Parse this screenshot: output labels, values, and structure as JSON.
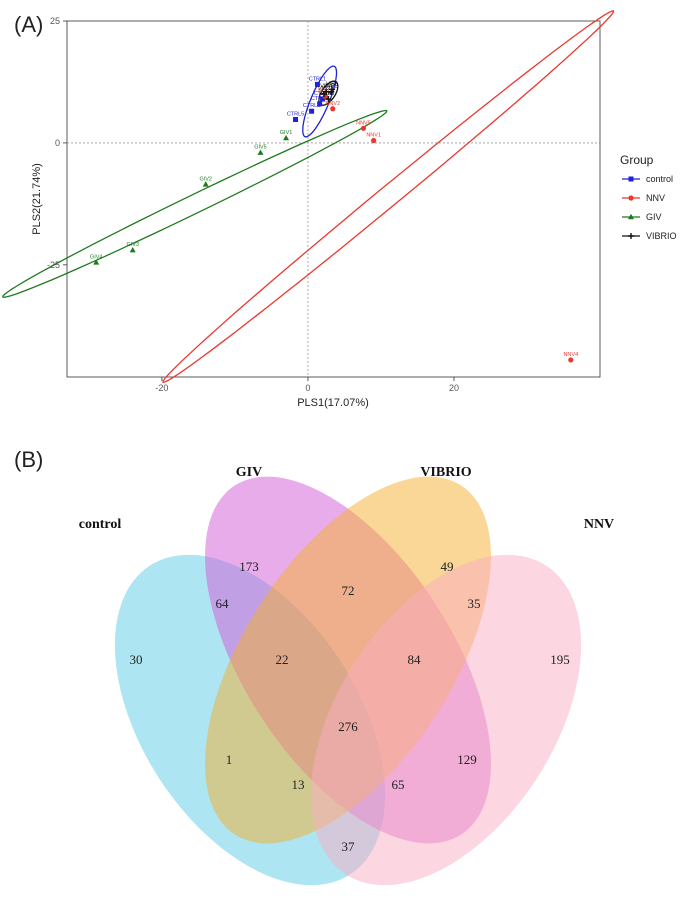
{
  "panel_a_label": "(A)",
  "panel_b_label": "(B)",
  "chart_data": [
    {
      "type": "scatter",
      "xlabel": "PLS1(17.07%)",
      "ylabel": "PLS2(21.74%)",
      "xlim": [
        -33,
        40
      ],
      "ylim": [
        -48,
        25
      ],
      "xticks": [
        -20,
        0,
        20
      ],
      "yticks": [
        -25,
        0,
        25
      ],
      "grid": false,
      "legend_title": "Group",
      "legend_position": "right",
      "series": [
        {
          "name": "control",
          "color": "#1f22d6",
          "marker": "square",
          "points": [
            {
              "label": "CTRL1",
              "x": 1.3,
              "y": 12.0
            },
            {
              "label": "CTRL2",
              "x": 0.5,
              "y": 6.5
            },
            {
              "label": "CTRL3",
              "x": 1.6,
              "y": 8.0
            },
            {
              "label": "CTRL4",
              "x": 2.0,
              "y": 9.0
            },
            {
              "label": "CTRL5",
              "x": -1.7,
              "y": 4.8
            }
          ],
          "ellipse": {
            "cx": 1.6,
            "cy": 8.5,
            "rx": 7.5,
            "ry": 1.3,
            "angle_deg": 75
          }
        },
        {
          "name": "NNV",
          "color": "#e8382f",
          "marker": "circle",
          "points": [
            {
              "label": "NNV1",
              "x": 9.0,
              "y": 0.5
            },
            {
              "label": "NNV2",
              "x": 3.4,
              "y": 7.0
            },
            {
              "label": "NNV3",
              "x": 2.4,
              "y": 9.5
            },
            {
              "label": "NNV4",
              "x": 36.0,
              "y": -44.5
            },
            {
              "label": "NNV5",
              "x": 7.6,
              "y": 3.0
            }
          ],
          "ellipse": {
            "cx": 11.0,
            "cy": -11.0,
            "rx": 49.0,
            "ry": 1.7,
            "angle_deg": 51
          }
        },
        {
          "name": "GIV",
          "color": "#1f7a1f",
          "marker": "triangle",
          "points": [
            {
              "label": "GIV1",
              "x": -3.0,
              "y": 1.0
            },
            {
              "label": "GIV2",
              "x": -14.0,
              "y": -8.5
            },
            {
              "label": "GIV3",
              "x": -24.0,
              "y": -22.0
            },
            {
              "label": "GIV4",
              "x": -29.0,
              "y": -24.5
            },
            {
              "label": "GIV5",
              "x": -6.5,
              "y": -2.0
            }
          ],
          "ellipse": {
            "cx": -15.5,
            "cy": -12.5,
            "rx": 32.5,
            "ry": 1.7,
            "angle_deg": 36
          }
        },
        {
          "name": "VIBRIO",
          "color": "#111111",
          "marker": "plus",
          "points": [
            {
              "label": "VIB1",
              "x": 3.2,
              "y": 10.5
            },
            {
              "label": "VIB2",
              "x": 2.2,
              "y": 10.0
            },
            {
              "label": "VIB3",
              "x": 2.8,
              "y": 9.0
            },
            {
              "label": "VIB4",
              "x": 2.5,
              "y": 10.5
            },
            {
              "label": "VIB5",
              "x": 3.3,
              "y": 11.0
            }
          ],
          "ellipse": {
            "cx": 2.8,
            "cy": 10.2,
            "rx": 2.6,
            "ry": 1.0,
            "angle_deg": 70
          }
        }
      ]
    },
    {
      "type": "venn",
      "sets": [
        {
          "name": "control",
          "color": "#5ccbe8"
        },
        {
          "name": "GIV",
          "color": "#d45ad8"
        },
        {
          "name": "VIBRIO",
          "color": "#f5b02e"
        },
        {
          "name": "NNV",
          "color": "#f9aec2"
        }
      ],
      "regions": [
        {
          "sets": [
            "control"
          ],
          "value": 30
        },
        {
          "sets": [
            "GIV"
          ],
          "value": 173
        },
        {
          "sets": [
            "VIBRIO"
          ],
          "value": 49
        },
        {
          "sets": [
            "NNV"
          ],
          "value": 195
        },
        {
          "sets": [
            "control",
            "GIV"
          ],
          "value": 64
        },
        {
          "sets": [
            "GIV",
            "VIBRIO"
          ],
          "value": 72
        },
        {
          "sets": [
            "VIBRIO",
            "NNV"
          ],
          "value": 35
        },
        {
          "sets": [
            "control",
            "GIV",
            "VIBRIO"
          ],
          "value": 22
        },
        {
          "sets": [
            "GIV",
            "VIBRIO",
            "NNV"
          ],
          "value": 84
        },
        {
          "sets": [
            "control",
            "GIV",
            "VIBRIO",
            "NNV"
          ],
          "value": 276
        },
        {
          "sets": [
            "control",
            "VIBRIO"
          ],
          "value": 1
        },
        {
          "sets": [
            "GIV",
            "NNV"
          ],
          "value": 129
        },
        {
          "sets": [
            "control",
            "VIBRIO",
            "NNV"
          ],
          "value": 13
        },
        {
          "sets": [
            "control",
            "GIV",
            "NNV"
          ],
          "value": 65
        },
        {
          "sets": [
            "control",
            "NNV"
          ],
          "value": 37
        }
      ]
    }
  ]
}
